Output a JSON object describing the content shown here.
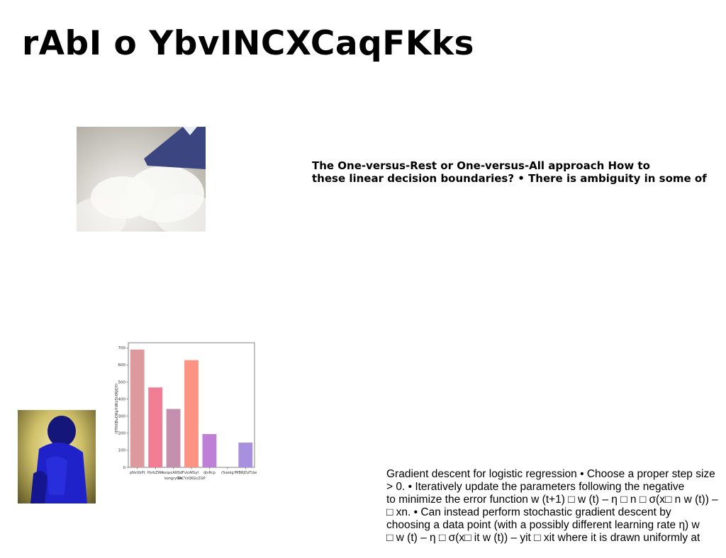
{
  "slide": {
    "title": "rAbI o YbvINCXCaqFKks",
    "paragraph_top": [
      "The One-versus-Rest or One-versus-All approach How to",
      "these linear decision boundaries? • There is ambiguity in some of"
    ],
    "paragraph_bottom": [
      "Gradient descent for logistic regression • Choose a proper step size",
      "> 0. • Iteratively update the parameters following the negative",
      "to minimize the error function w (t+1) □ w (t) – η □ n □ σ(x□ n w (t)) –",
      "□ xn. • Can instead perform stochastic gradient descent by",
      "choosing a data point (with a possibly different learning rate η) w",
      "□ w (t) – η □ σ(x□ it w (t)) – yit □ xit where it is drawn uniformly at"
    ]
  },
  "chart_data": {
    "type": "bar",
    "categories": [
      "pNxVbPt",
      "PorbZWA",
      "sxqxcANSdF",
      "vlcAfGyl",
      "djvRcp",
      "rSoekg",
      "fMBRJDzTUw"
    ],
    "tick_labels": [
      [
        "pNxVbPt",
        ""
      ],
      [
        "PorbZWA",
        ""
      ],
      [
        "sxqxcANSdF",
        "kongryQw"
      ],
      [
        "vlcAfGyl",
        "PACYzQKGcZGP"
      ],
      [
        "djvRcp",
        ""
      ],
      [
        "rSoekg",
        ""
      ],
      [
        "fMBRJDzTUw",
        ""
      ]
    ],
    "values": [
      690,
      468,
      342,
      628,
      195,
      0,
      145
    ],
    "bar_colors": [
      "#dd9a9e",
      "#f37c95",
      "#c48ead",
      "#fb9483",
      "#c07fd6",
      "#b78ad6",
      "#a890df"
    ],
    "ylabel": "rJTHXBuQKpYdKzSiXRJQYr",
    "xlabel": "",
    "ylim": [
      0,
      730
    ],
    "yticks": [
      0,
      100,
      200,
      300,
      400,
      500,
      600,
      700
    ],
    "grid": false
  }
}
